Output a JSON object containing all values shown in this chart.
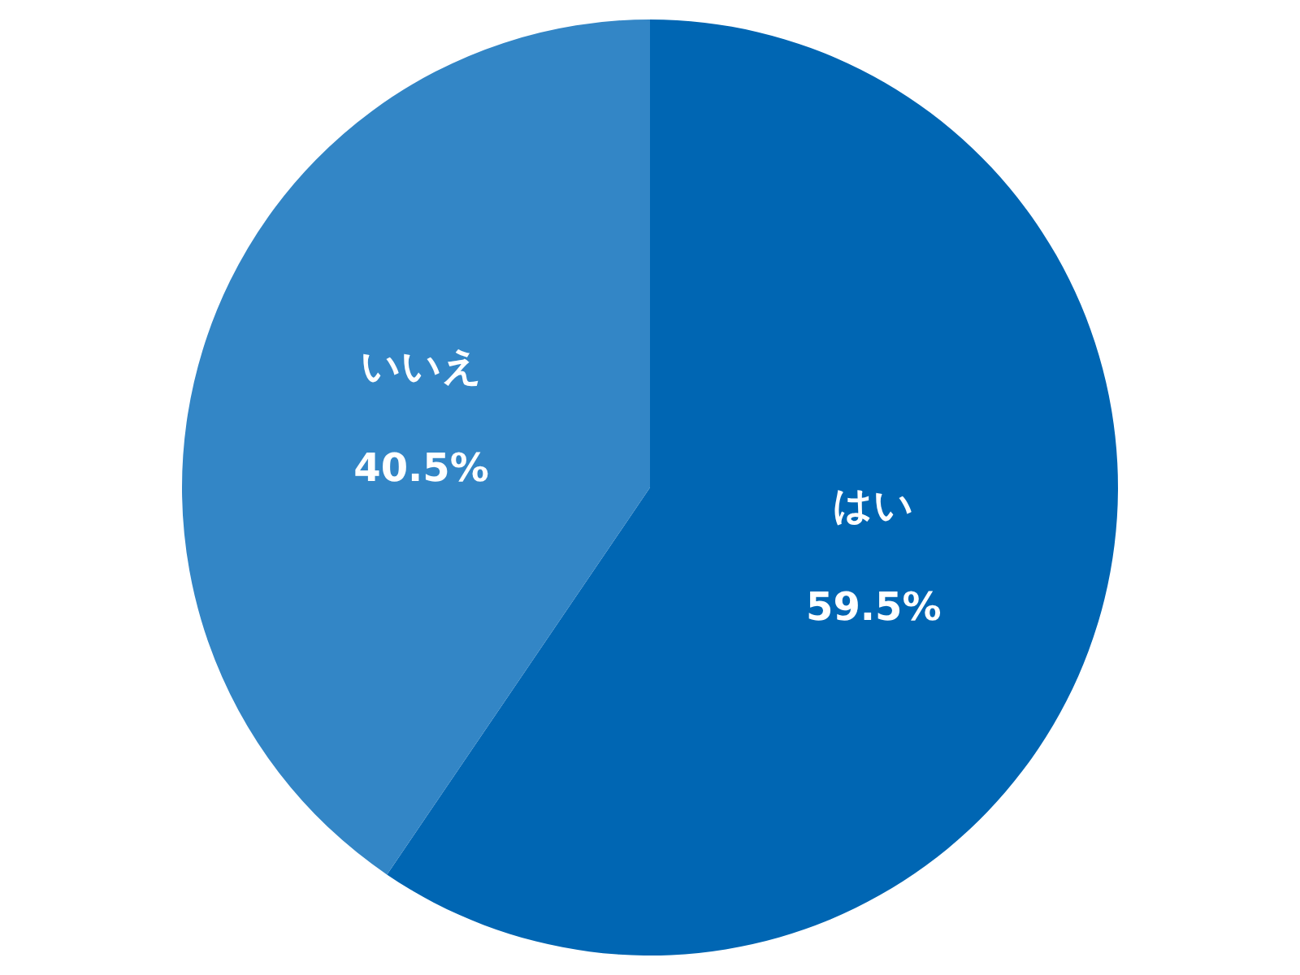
{
  "chart_data": {
    "type": "pie",
    "categories": [
      "はい",
      "いいえ"
    ],
    "values": [
      59.5,
      40.5
    ],
    "colors": [
      "#0066b3",
      "#3386c6"
    ],
    "value_labels": [
      "59.5%",
      "40.5%"
    ],
    "legend": false
  }
}
